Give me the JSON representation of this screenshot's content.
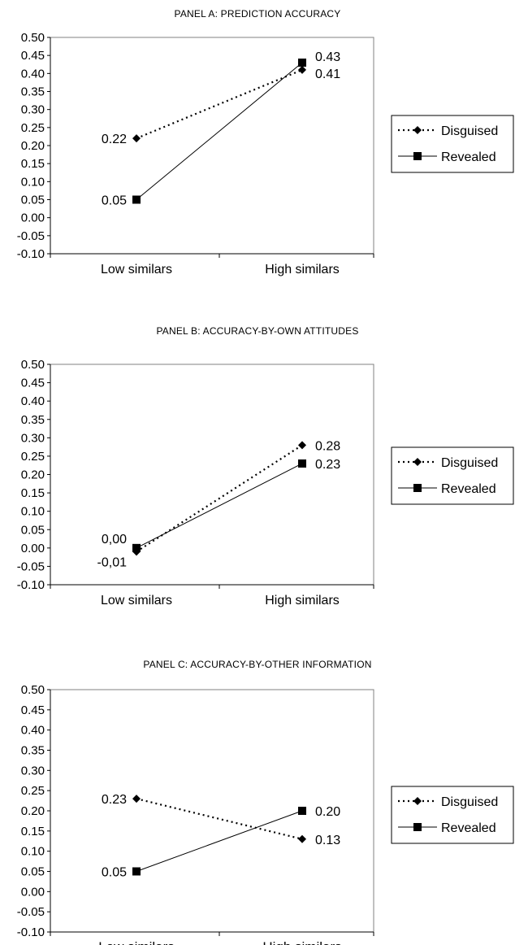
{
  "chart_data": [
    {
      "type": "line",
      "title": "PANEL A: PREDICTION ACCURACY",
      "categories": [
        "Low  similars",
        "High similars"
      ],
      "series": [
        {
          "name": "Disguised",
          "values": [
            0.22,
            0.41
          ],
          "labels": [
            "0.22",
            "0.41"
          ],
          "style": "dotted",
          "marker": "diamond"
        },
        {
          "name": "Revealed",
          "values": [
            0.05,
            0.43
          ],
          "labels": [
            "0.05",
            "0.43"
          ],
          "style": "solid",
          "marker": "square"
        }
      ],
      "ylim": [
        -0.1,
        0.5
      ],
      "yticks": [
        "0.50",
        "0.45",
        "0.40",
        "0.35",
        "0.30",
        "0.25",
        "0.20",
        "0.15",
        "0.10",
        "0.05",
        "0.00",
        "-0.05",
        "-0.10"
      ],
      "legend": "right",
      "grid": false
    },
    {
      "type": "line",
      "title": "PANEL B: ACCURACY-BY-OWN ATTITUDES",
      "categories": [
        "Low  similars",
        "High similars"
      ],
      "series": [
        {
          "name": "Disguised",
          "values": [
            -0.01,
            0.28
          ],
          "labels": [
            "-0,01",
            "0.28"
          ],
          "style": "dotted",
          "marker": "diamond"
        },
        {
          "name": "Revealed",
          "values": [
            0.0,
            0.23
          ],
          "labels": [
            "0,00",
            "0.23"
          ],
          "style": "solid",
          "marker": "square"
        }
      ],
      "ylim": [
        -0.1,
        0.5
      ],
      "yticks": [
        "0.50",
        "0.45",
        "0.40",
        "0.35",
        "0.30",
        "0.25",
        "0.20",
        "0.15",
        "0.10",
        "0.05",
        "0.00",
        "-0.05",
        "-0.10"
      ],
      "legend": "right",
      "grid": false
    },
    {
      "type": "line",
      "title": "PANEL C: ACCURACY-BY-OTHER INFORMATION",
      "categories": [
        "Low similars",
        "High similars"
      ],
      "series": [
        {
          "name": "Disguised",
          "values": [
            0.23,
            0.13
          ],
          "labels": [
            "0.23",
            "0.13"
          ],
          "style": "dotted",
          "marker": "diamond"
        },
        {
          "name": "Revealed",
          "values": [
            0.05,
            0.2
          ],
          "labels": [
            "0.05",
            "0.20"
          ],
          "style": "solid",
          "marker": "square"
        }
      ],
      "ylim": [
        -0.1,
        0.5
      ],
      "yticks": [
        "0.50",
        "0.45",
        "0.40",
        "0.35",
        "0.30",
        "0.25",
        "0.20",
        "0.15",
        "0.10",
        "0.05",
        "0.00",
        "-0.05",
        "-0.10"
      ],
      "legend": "right",
      "grid": false
    }
  ]
}
